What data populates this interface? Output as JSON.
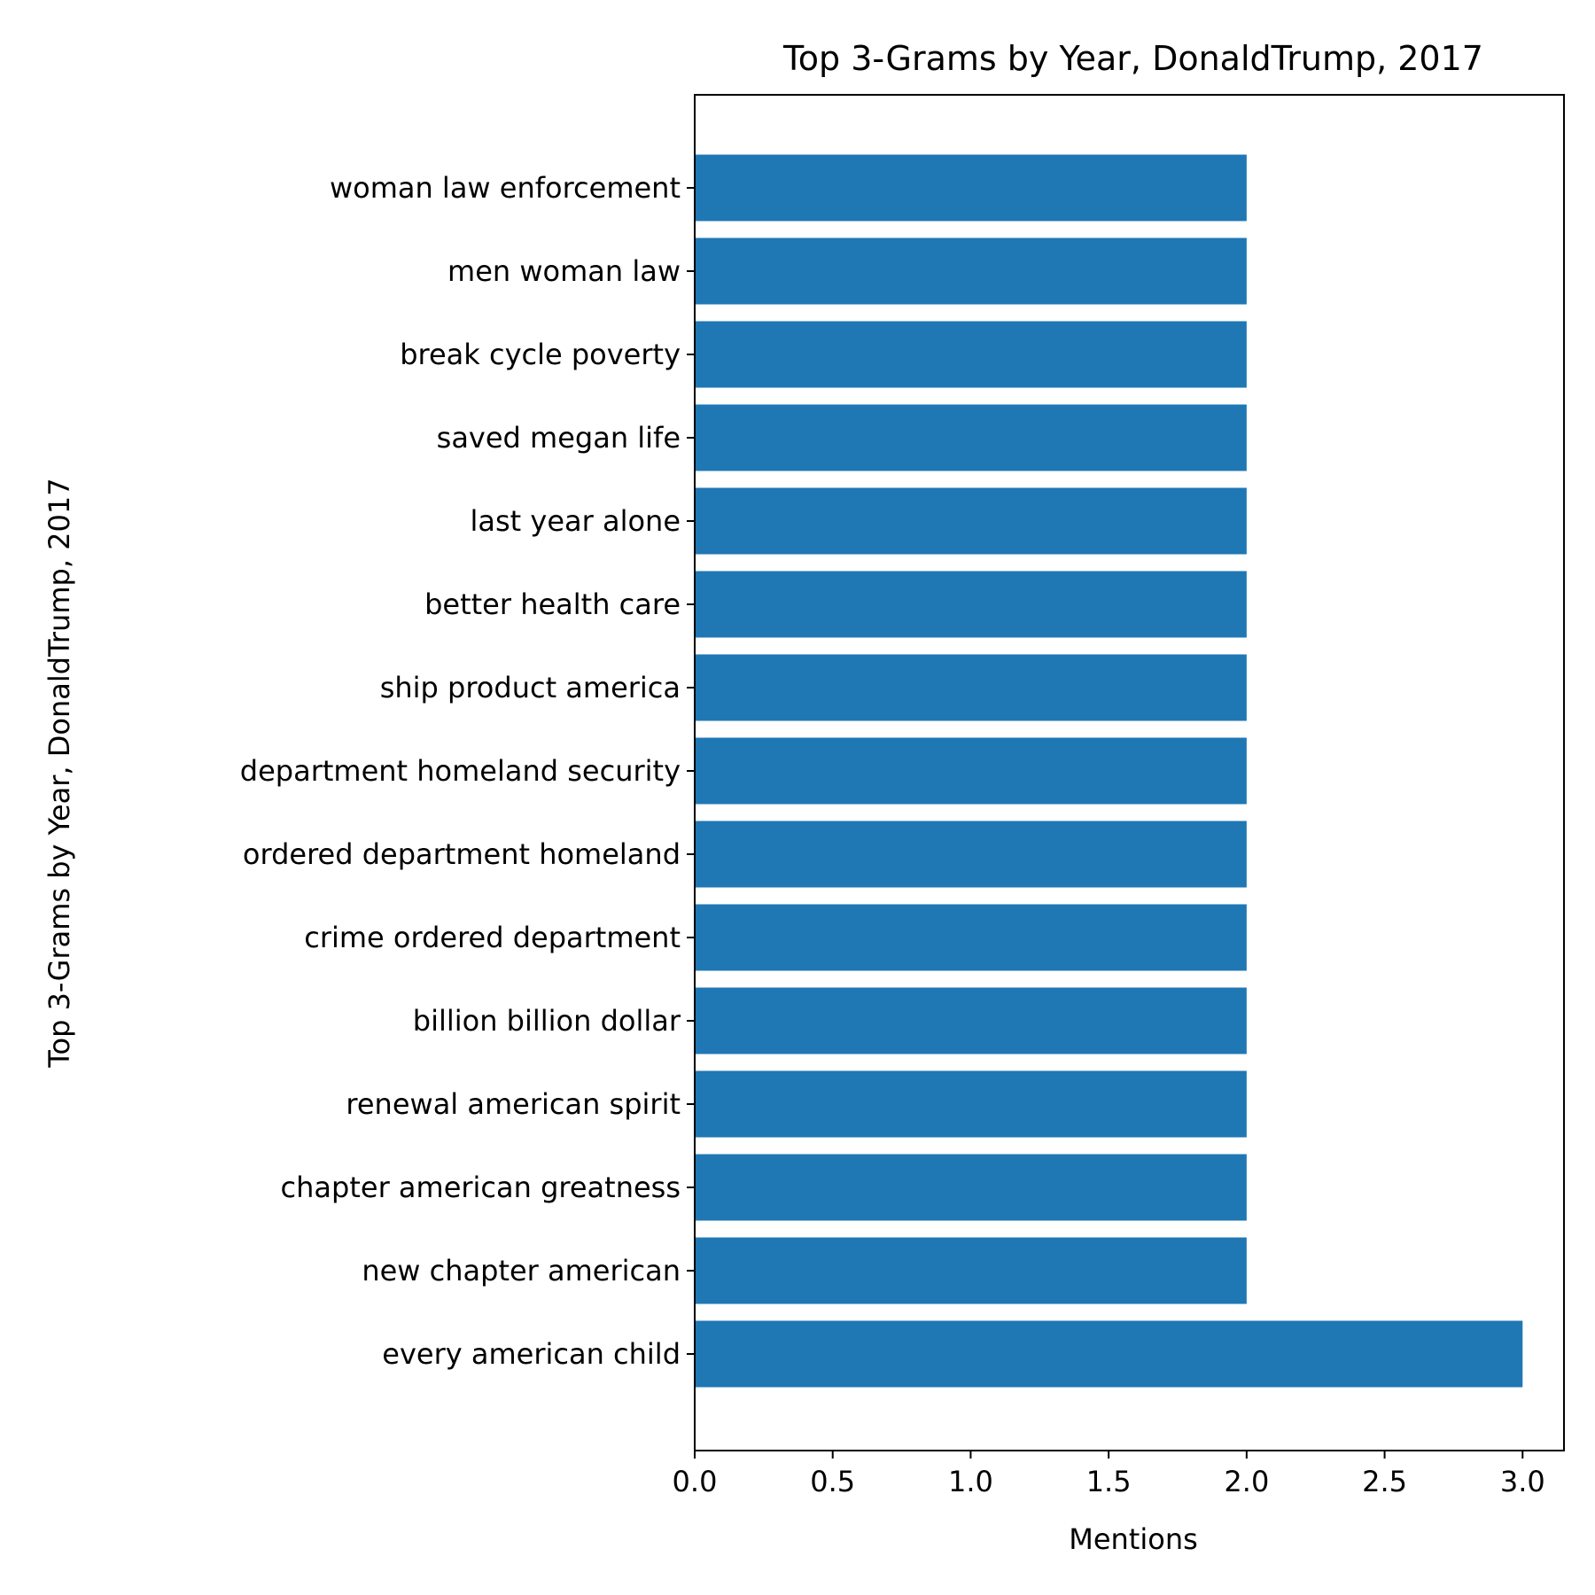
{
  "chart_data": {
    "type": "bar",
    "orientation": "horizontal",
    "title": "Top 3-Grams by Year, DonaldTrump, 2017",
    "xlabel": "Mentions",
    "ylabel": "Top 3-Grams by Year, DonaldTrump, 2017",
    "categories": [
      "woman law enforcement",
      "men woman law",
      "break cycle poverty",
      "saved megan life",
      "last year alone",
      "better health care",
      "ship product america",
      "department homeland security",
      "ordered department homeland",
      "crime ordered department",
      "billion billion dollar",
      "renewal american spirit",
      "chapter american greatness",
      "new chapter american",
      "every american child"
    ],
    "values": [
      2,
      2,
      2,
      2,
      2,
      2,
      2,
      2,
      2,
      2,
      2,
      2,
      2,
      2,
      3
    ],
    "xlim": [
      0,
      3.15
    ],
    "xticks": [
      "0.0",
      "0.5",
      "1.0",
      "1.5",
      "2.0",
      "2.5",
      "3.0"
    ],
    "bar_color": "#1f77b4",
    "grid": false,
    "legend": "none"
  }
}
